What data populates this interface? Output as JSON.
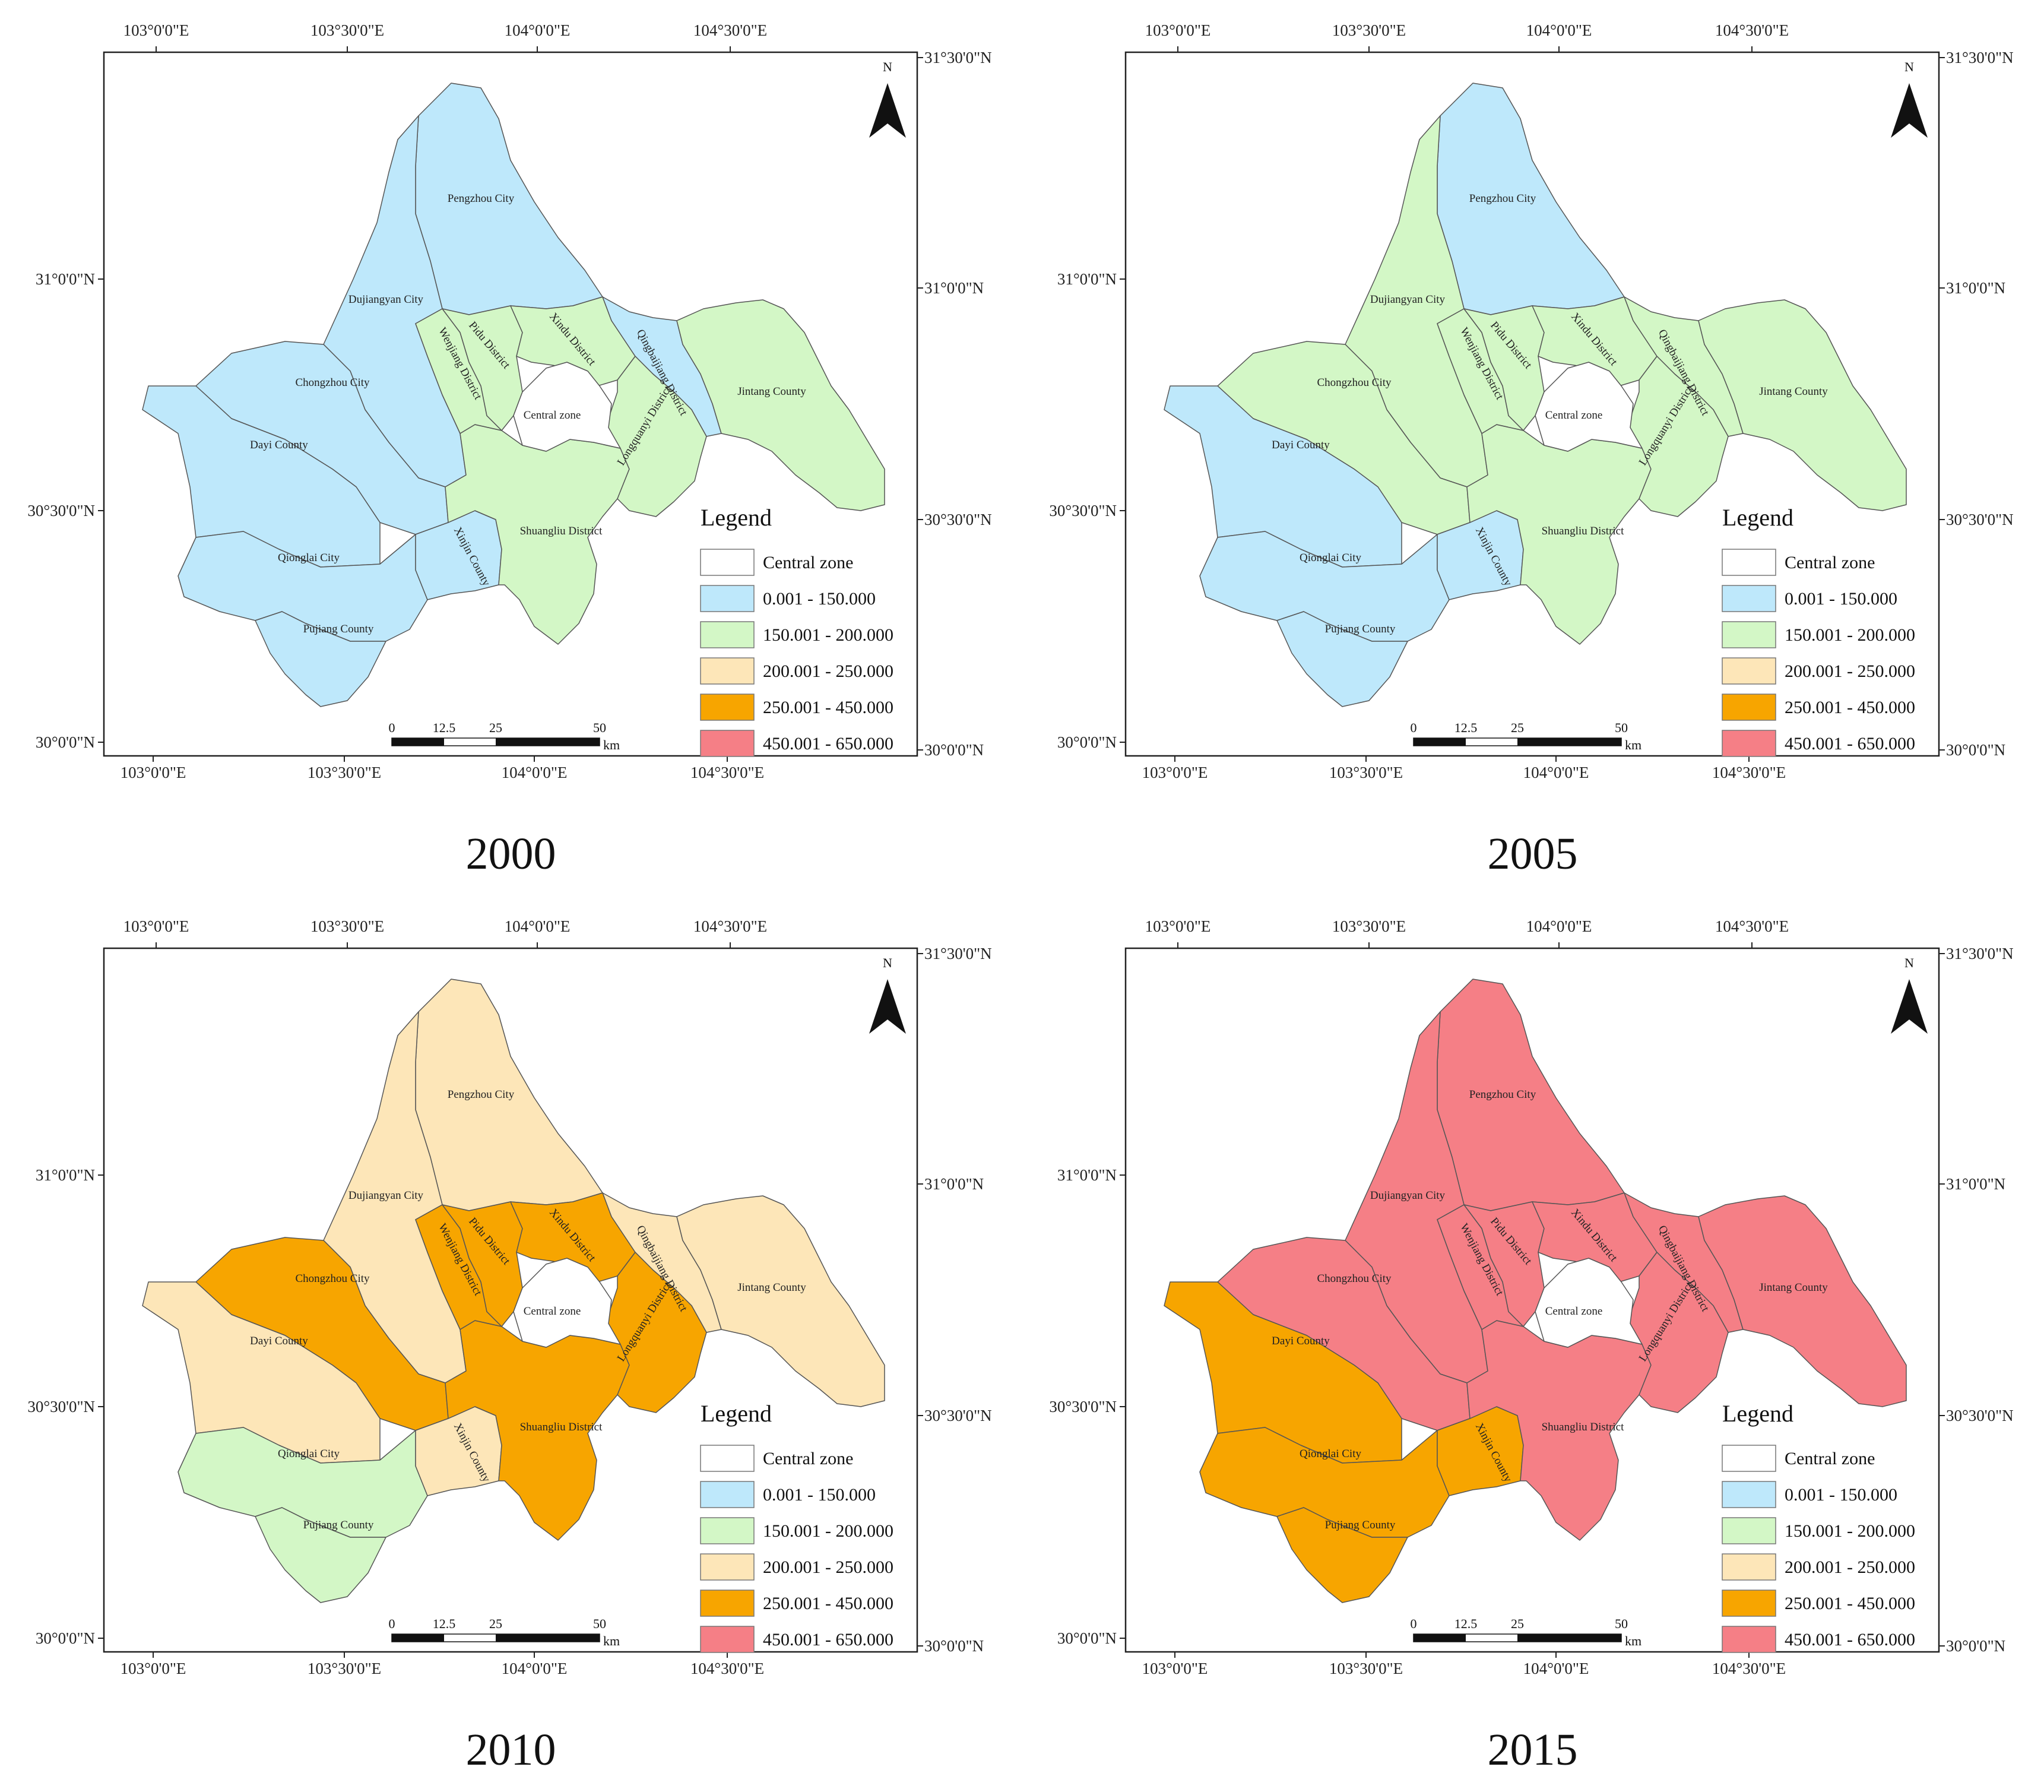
{
  "colors": {
    "central": "#ffffff",
    "c0": "#bee8fb",
    "c1": "#d3f7c6",
    "c2": "#fde6b8",
    "c3": "#f7a500",
    "c4": "#f57f86"
  },
  "legend": {
    "title": "Legend",
    "items": [
      {
        "label": "Central zone",
        "color_key": "central"
      },
      {
        "label": "0.001 - 150.000",
        "color_key": "c0"
      },
      {
        "label": "150.001 - 200.000",
        "color_key": "c1"
      },
      {
        "label": "200.001 - 250.000",
        "color_key": "c2"
      },
      {
        "label": "250.001 - 450.000",
        "color_key": "c3"
      },
      {
        "label": "450.001 - 650.000",
        "color_key": "c4"
      }
    ]
  },
  "axes": {
    "top": [
      "103°0'0\"E",
      "103°30'0\"E",
      "104°0'0\"E",
      "104°30'0\"E"
    ],
    "bottom": [
      "103°0'0\"E",
      "103°30'0\"E",
      "104°0'0\"E",
      "104°30'0\"E"
    ],
    "left": [
      "31°0'0\"N",
      "30°30'0\"N",
      "30°0'0\"N"
    ],
    "right": [
      "31°30'0\"N",
      "31°0'0\"N",
      "30°30'0\"N",
      "30°0'0\"N"
    ]
  },
  "north": "N",
  "scale": {
    "ticks": [
      "0",
      "12.5",
      "25",
      "50"
    ],
    "unit": "km"
  },
  "districts": [
    {
      "id": "pengzhou",
      "name": "Pengzhou City"
    },
    {
      "id": "dujiangyan",
      "name": "Dujiangyan City"
    },
    {
      "id": "chongzhou",
      "name": "Chongzhou City"
    },
    {
      "id": "dayi",
      "name": "Dayi County"
    },
    {
      "id": "qionglai",
      "name": "Qionglai City"
    },
    {
      "id": "pujiang",
      "name": "Pujiang County"
    },
    {
      "id": "xinjin",
      "name": "Xinjin County"
    },
    {
      "id": "shuangliu",
      "name": "Shuangliu District"
    },
    {
      "id": "wenjiang",
      "name": "Wenjiang District"
    },
    {
      "id": "pidu",
      "name": "Pidu District"
    },
    {
      "id": "xindu",
      "name": "Xindu District"
    },
    {
      "id": "qingbaijiang",
      "name": "Qingbaijiang District"
    },
    {
      "id": "longquanyi",
      "name": "Longquanyi District"
    },
    {
      "id": "jintang",
      "name": "Jintang County"
    },
    {
      "id": "central",
      "name": "Central zone"
    }
  ],
  "panels": [
    {
      "year": "2000",
      "classes": {
        "pengzhou": "c0",
        "dujiangyan": "c0",
        "chongzhou": "c0",
        "dayi": "c0",
        "qionglai": "c0",
        "pujiang": "c0",
        "xinjin": "c0",
        "shuangliu": "c1",
        "wenjiang": "c1",
        "pidu": "c1",
        "xindu": "c1",
        "qingbaijiang": "c0",
        "longquanyi": "c1",
        "jintang": "c1",
        "central": "central"
      }
    },
    {
      "year": "2005",
      "classes": {
        "pengzhou": "c0",
        "dujiangyan": "c1",
        "chongzhou": "c1",
        "dayi": "c0",
        "qionglai": "c0",
        "pujiang": "c0",
        "xinjin": "c0",
        "shuangliu": "c1",
        "wenjiang": "c1",
        "pidu": "c1",
        "xindu": "c1",
        "qingbaijiang": "c1",
        "longquanyi": "c1",
        "jintang": "c1",
        "central": "central"
      }
    },
    {
      "year": "2010",
      "classes": {
        "pengzhou": "c2",
        "dujiangyan": "c2",
        "chongzhou": "c3",
        "dayi": "c2",
        "qionglai": "c1",
        "pujiang": "c1",
        "xinjin": "c2",
        "shuangliu": "c3",
        "wenjiang": "c3",
        "pidu": "c3",
        "xindu": "c3",
        "qingbaijiang": "c2",
        "longquanyi": "c3",
        "jintang": "c2",
        "central": "central"
      }
    },
    {
      "year": "2015",
      "classes": {
        "pengzhou": "c4",
        "dujiangyan": "c4",
        "chongzhou": "c4",
        "dayi": "c3",
        "qionglai": "c3",
        "pujiang": "c3",
        "xinjin": "c3",
        "shuangliu": "c4",
        "wenjiang": "c4",
        "pidu": "c4",
        "xindu": "c4",
        "qingbaijiang": "c4",
        "longquanyi": "c4",
        "jintang": "c4",
        "central": "central"
      }
    }
  ]
}
